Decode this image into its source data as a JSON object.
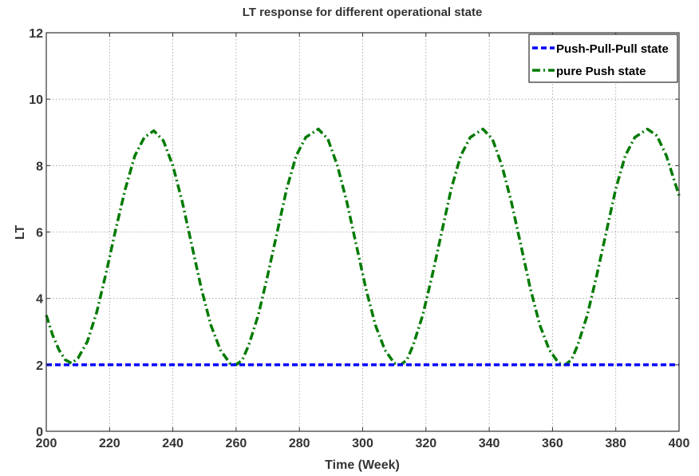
{
  "chart_data": {
    "type": "line",
    "title": "LT response for different operational state",
    "xlabel": "Time (Week)",
    "ylabel": "LT",
    "xlim": [
      200,
      400
    ],
    "ylim": [
      0,
      12
    ],
    "xticks": [
      200,
      220,
      240,
      260,
      280,
      300,
      320,
      340,
      360,
      380,
      400
    ],
    "yticks": [
      0,
      2,
      4,
      6,
      8,
      10,
      12
    ],
    "grid": true,
    "legend_position": "top-right",
    "series": [
      {
        "name": "Push-Pull-Pull state",
        "color": "#0000ff",
        "style": "dashed",
        "x": [
          200,
          400
        ],
        "y": [
          2,
          2
        ]
      },
      {
        "name": "pure Push state",
        "color": "#007a00",
        "style": "dash-dot",
        "x": [
          200,
          202,
          204,
          206,
          208,
          210,
          213,
          216,
          219,
          222,
          225,
          228,
          231,
          234,
          237,
          240,
          243,
          246,
          249,
          252,
          255,
          258,
          260,
          262,
          264,
          267,
          270,
          273,
          276,
          279,
          282,
          286,
          289,
          292,
          295,
          298,
          301,
          304,
          307,
          310,
          312,
          314,
          316,
          319,
          322,
          325,
          328,
          331,
          334,
          338,
          341,
          344,
          347,
          350,
          353,
          356,
          359,
          362,
          364,
          366,
          368,
          371,
          374,
          377,
          380,
          383,
          386,
          390,
          393,
          396,
          400
        ],
        "y": [
          3.5,
          2.9,
          2.45,
          2.15,
          2.05,
          2.2,
          2.7,
          3.6,
          4.8,
          6.1,
          7.3,
          8.3,
          8.85,
          9.05,
          8.75,
          8.0,
          6.9,
          5.6,
          4.3,
          3.2,
          2.45,
          2.05,
          2.0,
          2.15,
          2.6,
          3.5,
          4.7,
          6.0,
          7.3,
          8.3,
          8.85,
          9.1,
          8.8,
          8.0,
          6.9,
          5.6,
          4.3,
          3.2,
          2.45,
          2.05,
          2.0,
          2.15,
          2.6,
          3.5,
          4.7,
          6.0,
          7.3,
          8.3,
          8.85,
          9.1,
          8.8,
          8.0,
          6.9,
          5.6,
          4.3,
          3.2,
          2.45,
          2.05,
          2.0,
          2.15,
          2.6,
          3.5,
          4.7,
          6.0,
          7.3,
          8.3,
          8.85,
          9.1,
          8.9,
          8.3,
          7.1
        ]
      }
    ]
  }
}
